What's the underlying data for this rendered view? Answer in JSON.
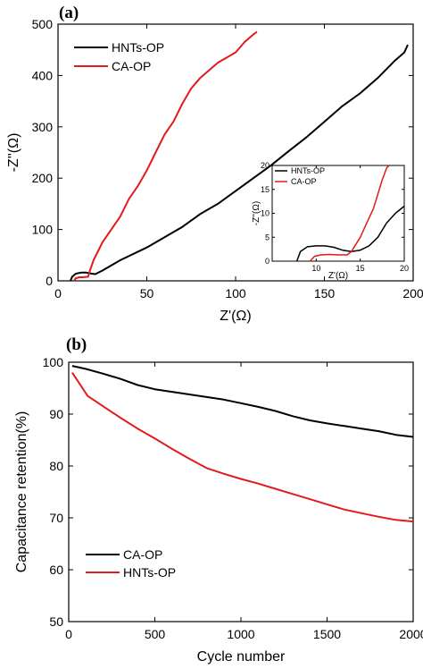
{
  "colors": {
    "black": "#000000",
    "red": "#e31a1c"
  },
  "chart_data": [
    {
      "panel": "(a)",
      "type": "line",
      "xlabel": "Z'(Ω)",
      "ylabel": "-Z''(Ω)",
      "xlim": [
        0,
        200
      ],
      "ylim": [
        0,
        500
      ],
      "xticks": [
        "0",
        "50",
        "100",
        "150",
        "200"
      ],
      "yticks": [
        "0",
        "100",
        "200",
        "300",
        "400",
        "500"
      ],
      "legend_position": "top-left",
      "series": [
        {
          "name": "HNTs-OP",
          "color": "#000000",
          "points": [
            [
              7,
              0
            ],
            [
              8,
              8
            ],
            [
              10,
              14
            ],
            [
              13,
              16
            ],
            [
              16,
              16
            ],
            [
              19,
              14
            ],
            [
              21,
              13
            ],
            [
              25,
              20
            ],
            [
              35,
              40
            ],
            [
              50,
              65
            ],
            [
              60,
              85
            ],
            [
              70,
              105
            ],
            [
              80,
              130
            ],
            [
              90,
              150
            ],
            [
              100,
              175
            ],
            [
              110,
              200
            ],
            [
              120,
              225
            ],
            [
              130,
              253
            ],
            [
              140,
              280
            ],
            [
              150,
              310
            ],
            [
              160,
              340
            ],
            [
              170,
              365
            ],
            [
              180,
              395
            ],
            [
              190,
              430
            ],
            [
              195,
              445
            ],
            [
              197,
              460
            ]
          ]
        },
        {
          "name": "CA-OP",
          "color": "#e31a1c",
          "points": [
            [
              9,
              0
            ],
            [
              10,
              5
            ],
            [
              12,
              7
            ],
            [
              14,
              7
            ],
            [
              17,
              8
            ],
            [
              18,
              20
            ],
            [
              20,
              40
            ],
            [
              25,
              75
            ],
            [
              30,
              100
            ],
            [
              35,
              125
            ],
            [
              40,
              160
            ],
            [
              45,
              185
            ],
            [
              50,
              215
            ],
            [
              55,
              250
            ],
            [
              60,
              285
            ],
            [
              65,
              310
            ],
            [
              70,
              345
            ],
            [
              75,
              375
            ],
            [
              80,
              395
            ],
            [
              90,
              425
            ],
            [
              100,
              445
            ],
            [
              105,
              465
            ],
            [
              110,
              480
            ],
            [
              112,
              485
            ]
          ]
        }
      ],
      "inset": {
        "type": "line",
        "xlabel": "Z'(Ω)",
        "ylabel": "-Z''(Ω)",
        "xlim": [
          5,
          20
        ],
        "ylim": [
          0,
          20
        ],
        "xticks": [
          "10",
          "15",
          "20"
        ],
        "yticks": [
          "0",
          "5",
          "10",
          "15",
          "20"
        ],
        "legend_position": "top-left",
        "series": [
          {
            "name": "HNTs-OP",
            "color": "#000000",
            "points": [
              [
                7.8,
                0
              ],
              [
                8.2,
                2
              ],
              [
                9,
                3
              ],
              [
                10,
                3.2
              ],
              [
                11,
                3.2
              ],
              [
                12,
                2.9
              ],
              [
                13,
                2.3
              ],
              [
                14,
                2
              ],
              [
                15,
                2.3
              ],
              [
                16,
                3.2
              ],
              [
                17,
                5
              ],
              [
                18,
                8
              ],
              [
                19,
                10
              ],
              [
                20,
                11.5
              ]
            ]
          },
          {
            "name": "CA-OP",
            "color": "#e31a1c",
            "points": [
              [
                9.3,
                0
              ],
              [
                9.8,
                1
              ],
              [
                10.5,
                1.3
              ],
              [
                11.5,
                1.4
              ],
              [
                12.5,
                1.3
              ],
              [
                13.5,
                1.3
              ],
              [
                14,
                2
              ],
              [
                14.5,
                3.5
              ],
              [
                15,
                5
              ],
              [
                15.5,
                7
              ],
              [
                16,
                9
              ],
              [
                16.5,
                11
              ],
              [
                17,
                14
              ],
              [
                17.5,
                17
              ],
              [
                18,
                19.5
              ],
              [
                18.3,
                20
              ]
            ]
          }
        ]
      }
    },
    {
      "panel": "(b)",
      "type": "line",
      "xlabel": "Cycle number",
      "ylabel": "Capacitance retention(%)",
      "xlim": [
        0,
        2000
      ],
      "ylim": [
        50,
        100
      ],
      "xticks": [
        "0",
        "500",
        "1000",
        "1500",
        "2000"
      ],
      "yticks": [
        "50",
        "60",
        "70",
        "80",
        "90",
        "100"
      ],
      "legend_position": "bottom-left",
      "series": [
        {
          "name": "CA-OP",
          "color": "#000000",
          "points": [
            [
              20,
              99.3
            ],
            [
              100,
              98.7
            ],
            [
              200,
              97.8
            ],
            [
              300,
              96.8
            ],
            [
              400,
              95.6
            ],
            [
              500,
              94.8
            ],
            [
              600,
              94.3
            ],
            [
              700,
              93.8
            ],
            [
              800,
              93.3
            ],
            [
              900,
              92.8
            ],
            [
              1000,
              92.1
            ],
            [
              1100,
              91.4
            ],
            [
              1200,
              90.6
            ],
            [
              1300,
              89.6
            ],
            [
              1400,
              88.8
            ],
            [
              1500,
              88.2
            ],
            [
              1600,
              87.7
            ],
            [
              1700,
              87.2
            ],
            [
              1800,
              86.7
            ],
            [
              1900,
              86.0
            ],
            [
              2000,
              85.6
            ]
          ]
        },
        {
          "name": "HNTs-OP",
          "color": "#e31a1c",
          "points": [
            [
              20,
              98
            ],
            [
              110,
              93.5
            ],
            [
              200,
              91.5
            ],
            [
              300,
              89.3
            ],
            [
              400,
              87.2
            ],
            [
              500,
              85.3
            ],
            [
              600,
              83.3
            ],
            [
              700,
              81.4
            ],
            [
              800,
              79.6
            ],
            [
              900,
              78.5
            ],
            [
              1000,
              77.5
            ],
            [
              1100,
              76.6
            ],
            [
              1200,
              75.6
            ],
            [
              1300,
              74.6
            ],
            [
              1400,
              73.6
            ],
            [
              1500,
              72.6
            ],
            [
              1600,
              71.6
            ],
            [
              1700,
              70.9
            ],
            [
              1800,
              70.2
            ],
            [
              1900,
              69.6
            ],
            [
              2000,
              69.3
            ]
          ]
        }
      ]
    }
  ]
}
